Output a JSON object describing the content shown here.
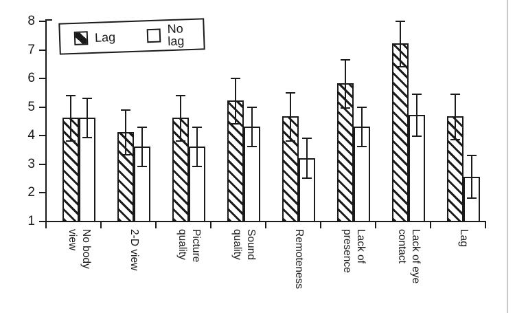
{
  "figure": {
    "background": "#ffffff",
    "ink_color": "#1a1a1a",
    "page_edge_line_color": "#c8c8c8"
  },
  "legend": {
    "items": [
      {
        "label": "Lag",
        "swatch": "hatched"
      },
      {
        "label": "No lag",
        "swatch": "plain"
      }
    ]
  },
  "chart_data": {
    "type": "bar",
    "title": "",
    "xlabel": "",
    "ylabel": "",
    "categories": [
      "No body view",
      "2-D view",
      "Picture quality",
      "Sound quality",
      "Remoteness",
      "Lack of presence",
      "Lack of eye contact",
      "Lag"
    ],
    "category_lines": [
      [
        "No body",
        "view"
      ],
      [
        "2-D view"
      ],
      [
        "Picture",
        "quality"
      ],
      [
        "Sound",
        "quality"
      ],
      [
        "Remoteness"
      ],
      [
        "Lack of",
        "presence"
      ],
      [
        "Lack of eye",
        "contact"
      ],
      [
        "Lag"
      ]
    ],
    "series": [
      {
        "name": "Lag",
        "fill": "hatched",
        "values": [
          4.6,
          4.1,
          4.6,
          5.2,
          4.65,
          5.8,
          7.2,
          4.65
        ],
        "errors": [
          0.8,
          0.8,
          0.8,
          0.8,
          0.85,
          0.85,
          0.8,
          0.8
        ]
      },
      {
        "name": "No lag",
        "fill": "plain",
        "values": [
          4.6,
          3.6,
          3.6,
          4.3,
          3.2,
          4.3,
          4.7,
          2.55
        ],
        "errors": [
          0.7,
          0.7,
          0.7,
          0.7,
          0.7,
          0.7,
          0.75,
          0.75
        ]
      }
    ],
    "error_bars": true,
    "ylim": [
      1,
      8
    ],
    "yticks": [
      1,
      2,
      3,
      4,
      5,
      6,
      7,
      8
    ],
    "grid": false,
    "legend_position": "top-left-inside"
  }
}
